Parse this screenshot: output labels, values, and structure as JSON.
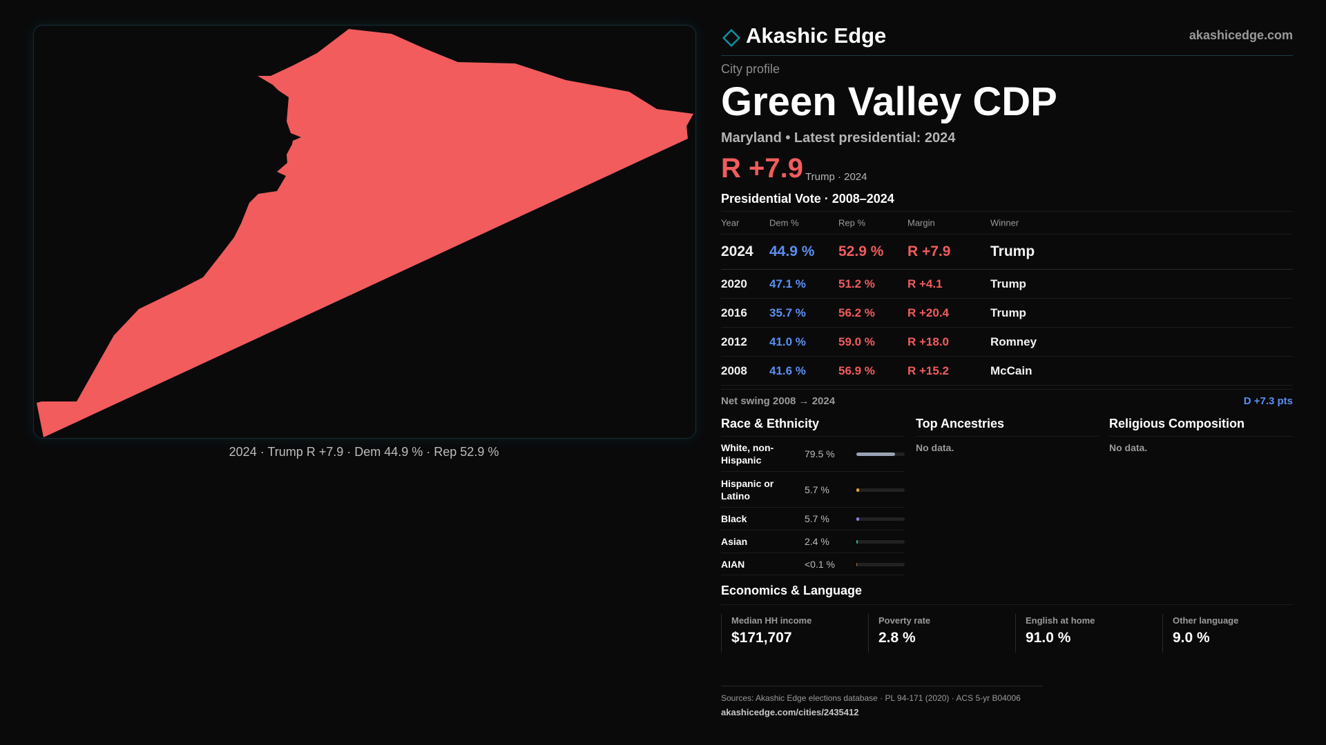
{
  "brand": {
    "name": "Akashic Edge",
    "site": "akashicedge.com",
    "accent": "#0e8f9c"
  },
  "profile": {
    "kicker": "City profile",
    "title": "Green Valley CDP",
    "subtitle": "Maryland • Latest presidential: 2024",
    "margin": "R +7.9",
    "margin_sub": "Trump · 2024"
  },
  "map": {
    "shape_color": "#f25c5c",
    "caption": "2024 · Trump  R +7.9 · Dem 44.9 % · Rep 52.9 %"
  },
  "vote": {
    "title": "Presidential Vote · 2008–2024",
    "headers": {
      "year": "Year",
      "dem": "Dem %",
      "rep": "Rep %",
      "margin": "Margin",
      "winner": "Winner"
    },
    "rows": [
      {
        "year": "2024",
        "dem": "44.9 %",
        "rep": "52.9 %",
        "margin": "R +7.9",
        "winner": "Trump"
      },
      {
        "year": "2020",
        "dem": "47.1 %",
        "rep": "51.2 %",
        "margin": "R +4.1",
        "winner": "Trump"
      },
      {
        "year": "2016",
        "dem": "35.7 %",
        "rep": "56.2 %",
        "margin": "R +20.4",
        "winner": "Trump"
      },
      {
        "year": "2012",
        "dem": "41.0 %",
        "rep": "59.0 %",
        "margin": "R +18.0",
        "winner": "Romney"
      },
      {
        "year": "2008",
        "dem": "41.6 %",
        "rep": "56.9 %",
        "margin": "R +15.2",
        "winner": "McCain"
      }
    ],
    "swing_label": "Net swing 2008 → 2024",
    "swing_value": "D +7.3 pts",
    "dem_color": "#5b8ff0",
    "rep_color": "#f25c5c"
  },
  "race": {
    "title": "Race & Ethnicity",
    "rows": [
      {
        "label": "White, non-Hispanic",
        "value": "79.5 %",
        "pct": 79.5,
        "color": "#9aa3b5"
      },
      {
        "label": "Hispanic or Latino",
        "value": "5.7 %",
        "pct": 5.7,
        "color": "#e8a33a"
      },
      {
        "label": "Black",
        "value": "5.7 %",
        "pct": 5.7,
        "color": "#8f7ce8"
      },
      {
        "label": "Asian",
        "value": "2.4 %",
        "pct": 2.4,
        "color": "#2fb58c"
      },
      {
        "label": "AIAN",
        "value": "<0.1 %",
        "pct": 0.05,
        "color": "#b06a4a"
      }
    ]
  },
  "ancestry": {
    "title": "Top Ancestries",
    "empty": "No data."
  },
  "religion": {
    "title": "Religious Composition",
    "empty": "No data."
  },
  "economics": {
    "title": "Economics & Language",
    "cells": [
      {
        "label": "Median HH income",
        "value": "$171,707"
      },
      {
        "label": "Poverty rate",
        "value": "2.8 %"
      },
      {
        "label": "English at home",
        "value": "91.0 %"
      },
      {
        "label": "Other language",
        "value": "9.0 %"
      }
    ]
  },
  "footer": {
    "sources": "Sources: Akashic Edge elections database · PL 94-171 (2020) · ACS 5-yr B04006",
    "url": "akashicedge.com/cities/2435412"
  }
}
